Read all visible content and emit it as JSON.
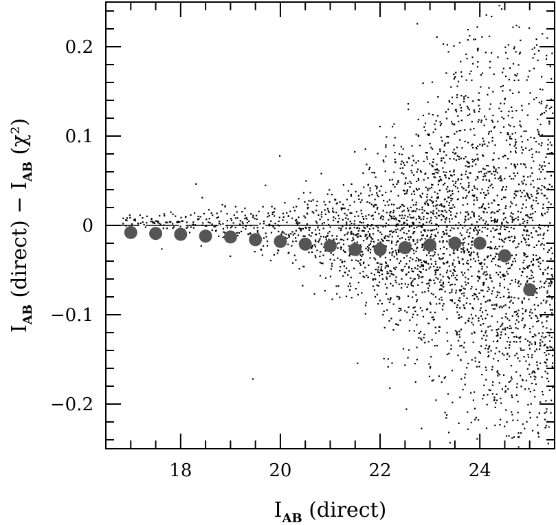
{
  "chart_data": {
    "type": "scatter",
    "xlabel": {
      "main": "I",
      "sub": "AB",
      "rest": " (direct)"
    },
    "ylabel": {
      "p1": "I",
      "s1": "AB",
      "p2": " (direct)  −  I",
      "s2": "AB",
      "p3": " (χ²)"
    },
    "xlim": [
      16.5,
      25.5
    ],
    "ylim": [
      -0.25,
      0.25
    ],
    "x_ticks_major": [
      18,
      20,
      22,
      24
    ],
    "x_tick_labels": [
      "18",
      "20",
      "22",
      "24"
    ],
    "y_ticks_major": [
      -0.2,
      -0.1,
      0,
      0.1,
      0.2
    ],
    "y_tick_labels": [
      "−0.2",
      "−0.1",
      "0",
      "0.1",
      "0.2"
    ],
    "reference_line": {
      "y": 0,
      "style": "long-dash then solid"
    },
    "series": [
      {
        "kind": "binned_means",
        "color": "#555555",
        "x": [
          17.0,
          17.5,
          18.0,
          18.5,
          19.0,
          19.5,
          20.0,
          20.5,
          21.0,
          21.5,
          22.0,
          22.5,
          23.0,
          23.5,
          24.0,
          24.5,
          25.0
        ],
        "y": [
          -0.008,
          -0.009,
          -0.01,
          -0.012,
          -0.013,
          -0.016,
          -0.018,
          -0.021,
          -0.023,
          -0.027,
          -0.027,
          -0.025,
          -0.022,
          -0.02,
          -0.02,
          -0.034,
          -0.072
        ]
      },
      {
        "kind": "individual_objects",
        "color": "#000000",
        "note_dense": "scatter of several thousand objects; spread grows with magnitude",
        "spread_model": {
          "x": [
            16.8,
            18,
            19,
            20,
            21,
            22,
            23,
            24,
            25.4
          ],
          "sigma": [
            0.004,
            0.006,
            0.009,
            0.014,
            0.024,
            0.045,
            0.075,
            0.11,
            0.14
          ]
        },
        "density_model": {
          "x": [
            16.8,
            18,
            19,
            20,
            21,
            22,
            23,
            24,
            25.4
          ],
          "count_per_unit": [
            40,
            60,
            80,
            120,
            230,
            430,
            700,
            800,
            850
          ]
        }
      }
    ]
  }
}
